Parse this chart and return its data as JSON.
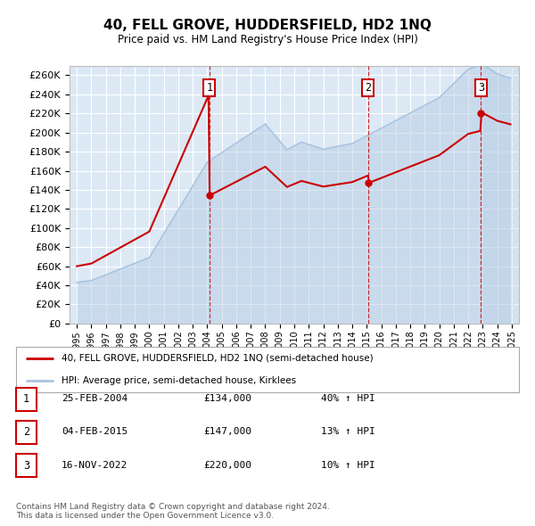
{
  "title": "40, FELL GROVE, HUDDERSFIELD, HD2 1NQ",
  "subtitle": "Price paid vs. HM Land Registry's House Price Index (HPI)",
  "background_color": "#ffffff",
  "plot_bg_color": "#dce9f5",
  "grid_color": "#ffffff",
  "hpi_color": "#aac4e0",
  "price_color": "#cc0000",
  "legend_label_price": "40, FELL GROVE, HUDDERSFIELD, HD2 1NQ (semi-detached house)",
  "legend_label_hpi": "HPI: Average price, semi-detached house, Kirklees",
  "footer": "Contains HM Land Registry data © Crown copyright and database right 2024.\nThis data is licensed under the Open Government Licence v3.0.",
  "sales": [
    {
      "num": 1,
      "date": "25-FEB-2004",
      "price": 134000,
      "pct": "40%",
      "dir": "↑",
      "x_year": 2004.15
    },
    {
      "num": 2,
      "date": "04-FEB-2015",
      "price": 147000,
      "pct": "13%",
      "dir": "↑",
      "x_year": 2015.09
    },
    {
      "num": 3,
      "date": "16-NOV-2022",
      "price": 220000,
      "pct": "10%",
      "dir": "↑",
      "x_year": 2022.88
    }
  ],
  "base_price": 60000,
  "base_year": 1995.0,
  "ylim": [
    0,
    270000
  ],
  "xlim": [
    1994.5,
    2025.5
  ],
  "yticks": [
    0,
    20000,
    40000,
    60000,
    80000,
    100000,
    120000,
    140000,
    160000,
    180000,
    200000,
    220000,
    240000,
    260000
  ],
  "xticks": [
    1995,
    1996,
    1997,
    1998,
    1999,
    2000,
    2001,
    2002,
    2003,
    2004,
    2005,
    2006,
    2007,
    2008,
    2009,
    2010,
    2011,
    2012,
    2013,
    2014,
    2015,
    2016,
    2017,
    2018,
    2019,
    2020,
    2021,
    2022,
    2023,
    2024,
    2025
  ]
}
